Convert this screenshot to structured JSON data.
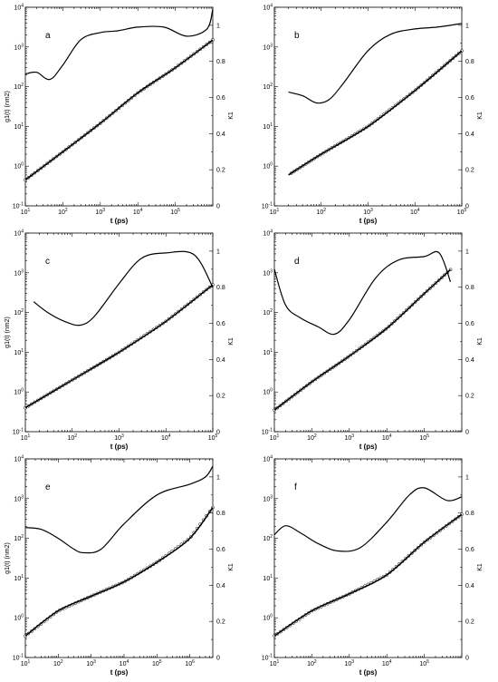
{
  "chart_data": [
    {
      "type": "line",
      "panel_label": "a",
      "xlabel": "t (ps)",
      "ylabel": "g1(t) (nm2)",
      "y2label": "K1",
      "x_scale": "log",
      "xlim": [
        10,
        1000000
      ],
      "xticks": [
        "10^1",
        "10^2",
        "10^3",
        "10^4",
        "10^5"
      ],
      "y_scale": "log",
      "ylim": [
        0.1,
        10000
      ],
      "yticks": [
        "10^-1",
        "10^0",
        "10^1",
        "10^2",
        "10^3",
        "10^4"
      ],
      "y2lim": [
        0,
        1.1
      ],
      "y2ticks": [
        "0",
        "0.2",
        "0.4",
        "0.6",
        "0.8",
        "1"
      ],
      "series": [
        {
          "role": "g1_simulation",
          "axis": "left",
          "style": "open-circles",
          "x": [
            10,
            100,
            1000,
            10000,
            100000,
            1000000
          ],
          "y": [
            0.45,
            2.3,
            12,
            70,
            300,
            1500
          ]
        },
        {
          "role": "g1_fit",
          "axis": "left",
          "style": "line",
          "x": [
            10,
            100,
            1000,
            10000,
            100000,
            1000000
          ],
          "y": [
            0.45,
            2.3,
            12,
            70,
            300,
            1500
          ]
        },
        {
          "role": "K1",
          "axis": "right",
          "style": "line",
          "x": [
            10,
            20,
            45,
            100,
            300,
            1000,
            3000,
            10000,
            50000,
            200000,
            700000,
            1000000
          ],
          "y": [
            0.73,
            0.74,
            0.7,
            0.78,
            0.92,
            0.96,
            0.97,
            0.99,
            0.99,
            0.94,
            0.98,
            1.09
          ]
        }
      ]
    },
    {
      "type": "line",
      "panel_label": "b",
      "xlabel": "t (ps)",
      "ylabel": "",
      "y2label": "K1",
      "x_scale": "log",
      "xlim": [
        10,
        100000
      ],
      "xticks": [
        "10^1",
        "10^2",
        "10^3",
        "10^4",
        "10^5"
      ],
      "y_scale": "log",
      "ylim": [
        0.1,
        10000
      ],
      "yticks": [
        "10^-1",
        "10^0",
        "10^1",
        "10^2",
        "10^3",
        "10^4"
      ],
      "y2lim": [
        0,
        1.1
      ],
      "y2ticks": [
        "0",
        "0.2",
        "0.4",
        "0.6",
        "0.8",
        "1"
      ],
      "series": [
        {
          "role": "g1_simulation",
          "axis": "left",
          "style": "open-circles",
          "x": [
            20,
            100,
            1000,
            10000,
            100000
          ],
          "y": [
            0.6,
            2.0,
            10,
            80,
            800
          ]
        },
        {
          "role": "g1_fit",
          "axis": "left",
          "style": "line",
          "x": [
            20,
            100,
            1000,
            10000,
            100000
          ],
          "y": [
            0.6,
            2.0,
            10,
            80,
            800
          ]
        },
        {
          "role": "K1",
          "axis": "right",
          "style": "line",
          "x": [
            20,
            40,
            80,
            150,
            300,
            1000,
            3000,
            10000,
            30000,
            100000
          ],
          "y": [
            0.63,
            0.61,
            0.57,
            0.59,
            0.68,
            0.86,
            0.95,
            0.98,
            0.99,
            1.01
          ]
        }
      ]
    },
    {
      "type": "line",
      "panel_label": "c",
      "xlabel": "t (ps)",
      "ylabel": "g1(t) (nm2)",
      "y2label": "K1",
      "x_scale": "log",
      "xlim": [
        10,
        100000
      ],
      "xticks": [
        "10^1",
        "10^2",
        "10^3",
        "10^4",
        "10^5"
      ],
      "y_scale": "log",
      "ylim": [
        0.1,
        10000
      ],
      "yticks": [
        "10^-1",
        "10^0",
        "10^1",
        "10^2",
        "10^3",
        "10^4"
      ],
      "y2lim": [
        0,
        1.1
      ],
      "y2ticks": [
        "0",
        "0.2",
        "0.4",
        "0.6",
        "0.8",
        "1"
      ],
      "series": [
        {
          "role": "g1_simulation",
          "axis": "left",
          "style": "open-circles",
          "x": [
            10,
            100,
            1000,
            10000,
            100000
          ],
          "y": [
            0.4,
            2.0,
            10,
            60,
            500
          ]
        },
        {
          "role": "g1_fit",
          "axis": "left",
          "style": "line",
          "x": [
            10,
            100,
            1000,
            10000,
            100000
          ],
          "y": [
            0.4,
            2.0,
            10,
            60,
            500
          ]
        },
        {
          "role": "K1",
          "axis": "right",
          "style": "line",
          "x": [
            15,
            30,
            70,
            150,
            300,
            1000,
            3000,
            10000,
            40000,
            100000
          ],
          "y": [
            0.72,
            0.66,
            0.61,
            0.59,
            0.64,
            0.82,
            0.96,
            0.99,
            0.98,
            0.8
          ]
        }
      ]
    },
    {
      "type": "line",
      "panel_label": "d",
      "xlabel": "t (ps)",
      "ylabel": "",
      "y2label": "K1",
      "x_scale": "log",
      "xlim": [
        10,
        1000000
      ],
      "xticks": [
        "10^1",
        "10^2",
        "10^3",
        "10^4",
        "10^5"
      ],
      "y_scale": "log",
      "ylim": [
        0.1,
        10000
      ],
      "yticks": [
        "10^-1",
        "10^0",
        "10^1",
        "10^2",
        "10^3",
        "10^4"
      ],
      "y2lim": [
        0,
        1.1
      ],
      "y2ticks": [
        "0",
        "0.2",
        "0.4",
        "0.6",
        "0.8",
        "1"
      ],
      "series": [
        {
          "role": "g1_simulation",
          "axis": "left",
          "style": "open-circles",
          "x": [
            10,
            100,
            1000,
            10000,
            100000,
            500000
          ],
          "y": [
            0.35,
            1.8,
            8,
            40,
            300,
            1200
          ]
        },
        {
          "role": "g1_fit",
          "axis": "left",
          "style": "line",
          "x": [
            10,
            100,
            1000,
            10000,
            100000,
            500000
          ],
          "y": [
            0.35,
            1.8,
            8,
            40,
            300,
            1200
          ]
        },
        {
          "role": "K1",
          "axis": "right",
          "style": "line",
          "x": [
            10,
            20,
            50,
            150,
            400,
            1000,
            5000,
            20000,
            100000,
            250000,
            500000
          ],
          "y": [
            0.9,
            0.7,
            0.63,
            0.58,
            0.54,
            0.62,
            0.85,
            0.95,
            0.97,
            0.99,
            0.83
          ]
        }
      ]
    },
    {
      "type": "line",
      "panel_label": "e",
      "xlabel": "t (ps)",
      "ylabel": "g1(t) (nm2)",
      "y2label": "K1",
      "x_scale": "log",
      "xlim": [
        10,
        5000000
      ],
      "xticks": [
        "10^1",
        "10^2",
        "10^3",
        "10^4",
        "10^5",
        "10^6"
      ],
      "y_scale": "log",
      "ylim": [
        0.1,
        10000
      ],
      "yticks": [
        "10^-1",
        "10^0",
        "10^1",
        "10^2",
        "10^3",
        "10^4"
      ],
      "y2lim": [
        0,
        1.1
      ],
      "y2ticks": [
        "0",
        "0.2",
        "0.4",
        "0.6",
        "0.8",
        "1"
      ],
      "series": [
        {
          "role": "g1_simulation",
          "axis": "left",
          "style": "open-circles",
          "x": [
            10,
            100,
            1000,
            10000,
            100000,
            1000000,
            5000000
          ],
          "y": [
            0.35,
            1.5,
            3.5,
            8,
            25,
            100,
            600
          ]
        },
        {
          "role": "g1_fit",
          "axis": "left",
          "style": "line",
          "x": [
            10,
            100,
            1000,
            10000,
            100000,
            1000000,
            5000000
          ],
          "y": [
            0.35,
            1.5,
            3.5,
            8,
            25,
            100,
            600
          ]
        },
        {
          "role": "K1",
          "axis": "right",
          "style": "line",
          "x": [
            10,
            30,
            100,
            300,
            600,
            2000,
            10000,
            100000,
            1000000,
            3000000,
            5000000
          ],
          "y": [
            0.72,
            0.71,
            0.66,
            0.6,
            0.58,
            0.6,
            0.74,
            0.9,
            0.96,
            1.0,
            1.06
          ]
        }
      ]
    },
    {
      "type": "line",
      "panel_label": "f",
      "xlabel": "t (ps)",
      "ylabel": "",
      "y2label": "K1",
      "x_scale": "log",
      "xlim": [
        10,
        1000000
      ],
      "xticks": [
        "10^1",
        "10^2",
        "10^3",
        "10^4",
        "10^5"
      ],
      "y_scale": "log",
      "ylim": [
        0.1,
        10000
      ],
      "yticks": [
        "10^-1",
        "10^0",
        "10^1",
        "10^2",
        "10^3",
        "10^4"
      ],
      "y2lim": [
        0,
        1.1
      ],
      "y2ticks": [
        "0",
        "0.2",
        "0.4",
        "0.6",
        "0.8",
        "1"
      ],
      "series": [
        {
          "role": "g1_simulation",
          "axis": "left",
          "style": "open-circles",
          "x": [
            10,
            100,
            1000,
            10000,
            100000,
            1000000
          ],
          "y": [
            0.35,
            1.5,
            4,
            12,
            80,
            400
          ]
        },
        {
          "role": "g1_fit",
          "axis": "left",
          "style": "line",
          "x": [
            10,
            100,
            1000,
            10000,
            100000,
            1000000
          ],
          "y": [
            0.35,
            1.5,
            4,
            12,
            80,
            400
          ]
        },
        {
          "role": "K1",
          "axis": "right",
          "style": "line",
          "x": [
            10,
            20,
            50,
            150,
            500,
            2000,
            10000,
            40000,
            100000,
            400000,
            1000000
          ],
          "y": [
            0.68,
            0.73,
            0.69,
            0.63,
            0.59,
            0.61,
            0.75,
            0.9,
            0.94,
            0.87,
            0.89
          ]
        }
      ]
    }
  ]
}
